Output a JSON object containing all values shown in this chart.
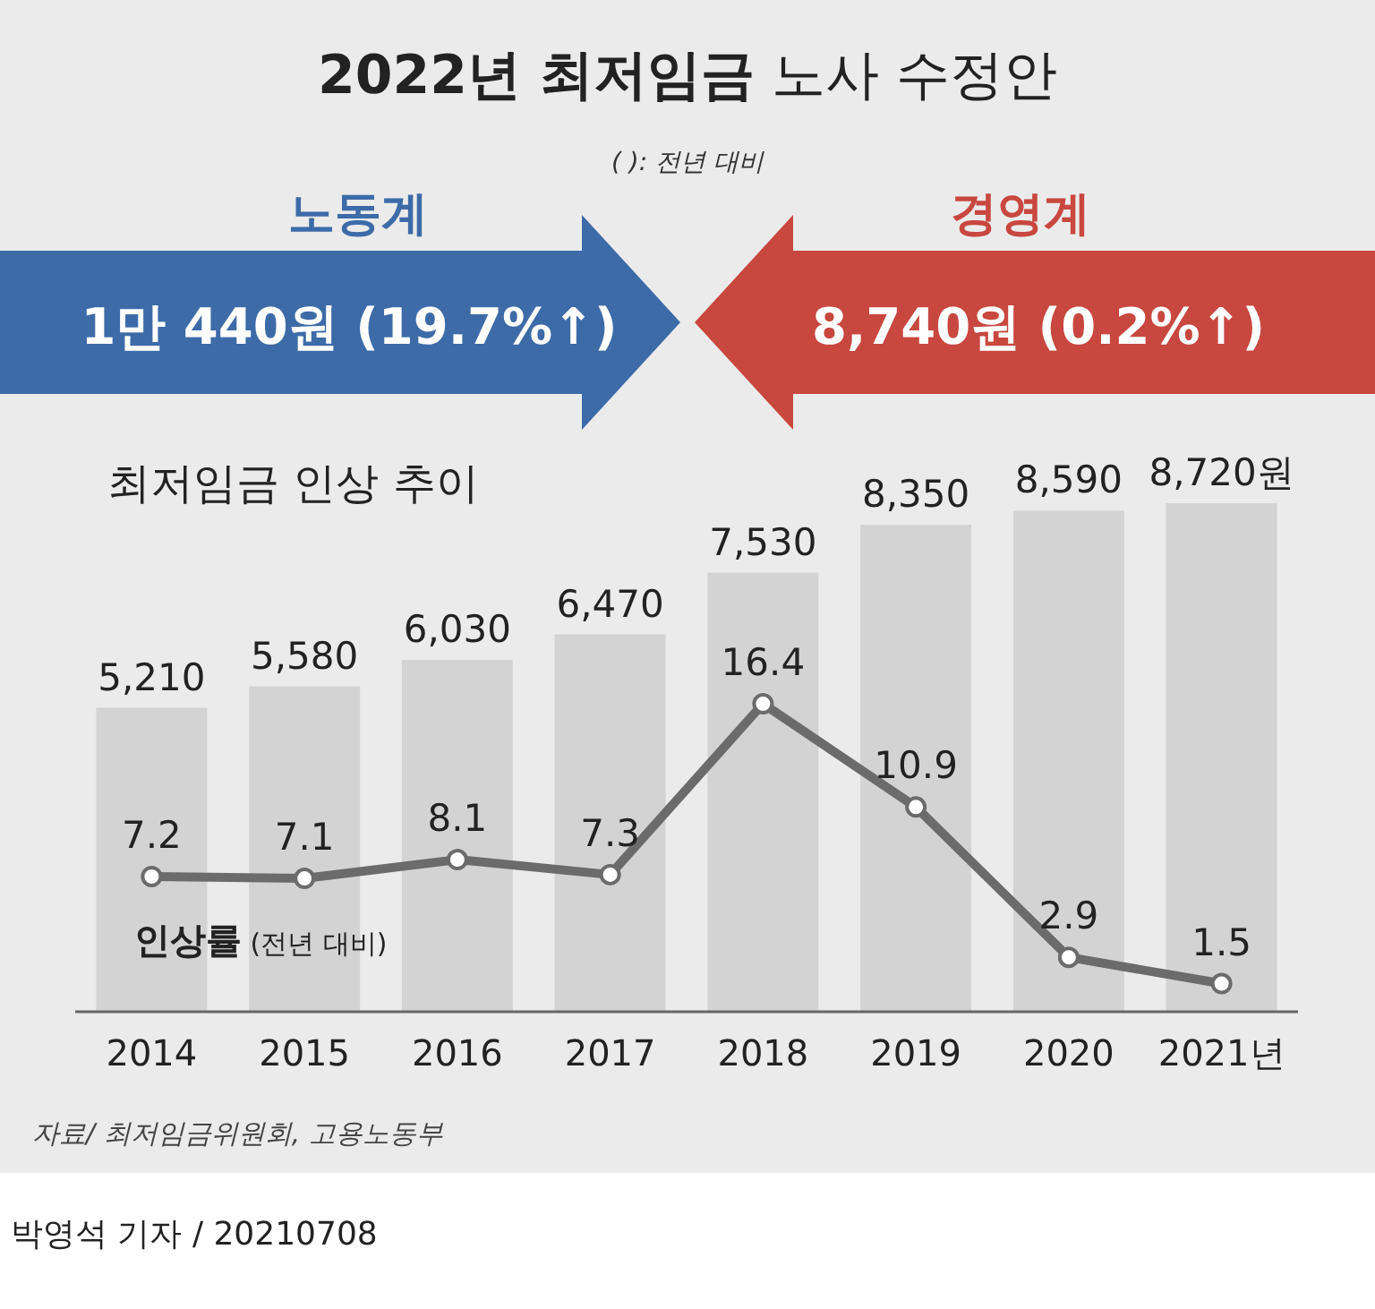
{
  "chart_data": {
    "type": "bar",
    "title": "**2022년 최저임금** 노사 수정안",
    "subtitle": "최저임금 인상 추이",
    "categories": [
      "2014",
      "2015",
      "2016",
      "2017",
      "2018",
      "2019",
      "2020",
      "2021년"
    ],
    "series": [
      {
        "color": "#d3d3d3",
        "values": [
          5210,
          5580,
          6030,
          6470,
          7530,
          8350,
          8590,
          8720
        ],
        "value_labels": [
          "5,210",
          "5,580",
          "6,030",
          "6,470",
          "7,530",
          "8,350",
          "8,590",
          "8,720원"
        ]
      },
      {
        "type": "line",
        "axis": "y2",
        "name": "인상률 (전년 대비)",
        "color": "#6b6b6b",
        "values": [
          7.2,
          7.1,
          8.1,
          7.3,
          16.4,
          10.9,
          2.9,
          1.5
        ],
        "value_labels": [
          "7.2",
          "7.1",
          "8.1",
          "7.3",
          "16.4",
          "10.9",
          "2.9",
          "1.5"
        ]
      }
    ],
    "marker": "circle",
    "line_style": "solid",
    "legend": false,
    "grid": false,
    "annotations": [
      "( ): 전년 대비",
      "노동계",
      "1만 440원 (19.7%↑)",
      "경영계",
      "8,740원 (0.2%↑)",
      "자료/ 최저임금위원회, 고용노동부",
      "박영석 기자 / 20210708"
    ]
  }
}
